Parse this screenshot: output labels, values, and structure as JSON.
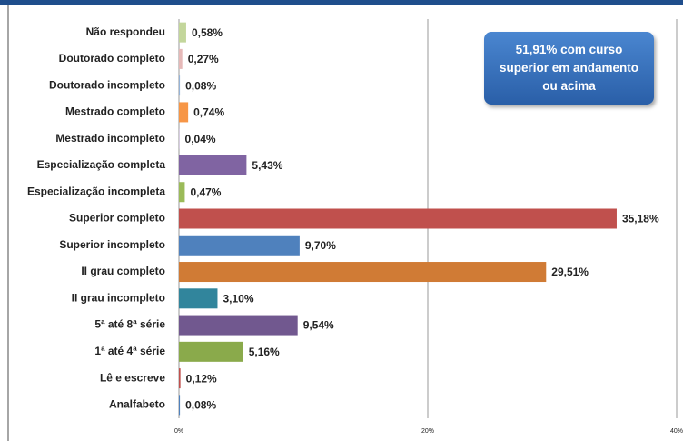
{
  "chart_data": {
    "type": "bar",
    "orientation": "horizontal",
    "categories": [
      "Não respondeu",
      "Doutorado completo",
      "Doutorado incompleto",
      "Mestrado completo",
      "Mestrado incompleto",
      "Especialização completa",
      "Especialização incompleta",
      "Superior completo",
      "Superior incompleto",
      "II grau completo",
      "II grau incompleto",
      "5ª até 8ª série",
      "1ª até 4ª série",
      "Lê e escreve",
      "Analfabeto"
    ],
    "values": [
      0.58,
      0.27,
      0.08,
      0.74,
      0.04,
      5.43,
      0.47,
      35.18,
      9.7,
      29.51,
      3.1,
      9.54,
      5.16,
      0.12,
      0.08
    ],
    "value_labels": [
      "0,58%",
      "0,27%",
      "0,08%",
      "0,74%",
      "0,04%",
      "5,43%",
      "0,47%",
      "35,18%",
      "9,70%",
      "29,51%",
      "3,10%",
      "9,54%",
      "5,16%",
      "0,12%",
      "0,08%"
    ],
    "colors": [
      "#c3d69b",
      "#e6b9b8",
      "#95b3d7",
      "#f79646",
      "#b3a2c7",
      "#8064a2",
      "#9bbb59",
      "#c0504d",
      "#4f81bd",
      "#d07b35",
      "#31859c",
      "#71588f",
      "#8aaa4b",
      "#c0504d",
      "#4f81bd"
    ],
    "xlim": [
      0,
      40
    ],
    "xticks": [
      {
        "value": 0,
        "label": "0%"
      },
      {
        "value": 20,
        "label": "20%"
      },
      {
        "value": 40,
        "label": "40%"
      }
    ],
    "grid": true,
    "annotation": "51,91% com curso superior em andamento ou acima"
  }
}
